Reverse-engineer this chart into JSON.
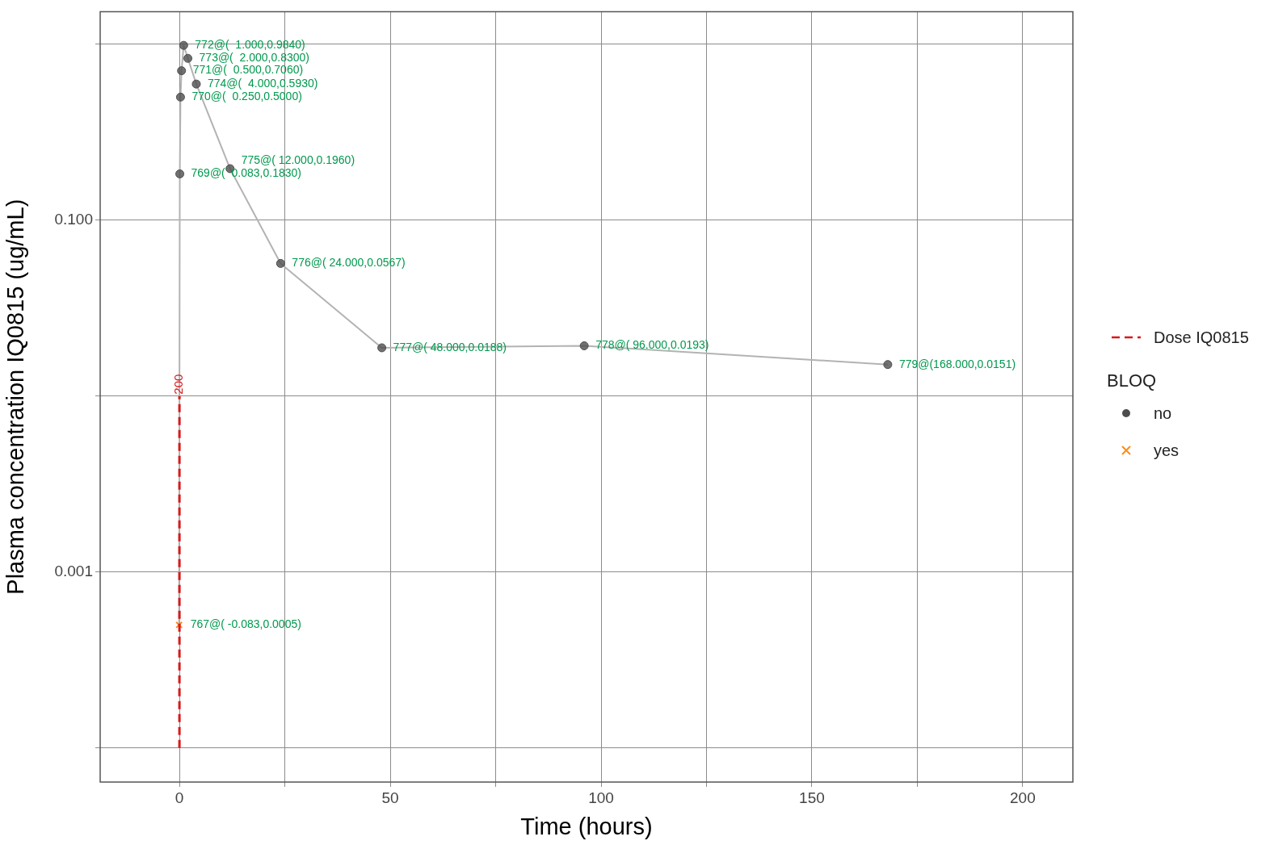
{
  "chart_data": {
    "type": "scatter",
    "xlabel": "Time (hours)",
    "ylabel": "Plasma concentration IQ0815 (ug/mL)",
    "legend_title": "BLOQ",
    "legend": "right",
    "grid": true,
    "log": "y",
    "xlim": [
      -18.8,
      211.9
    ],
    "ylim": [
      6.4e-05,
      1.53
    ],
    "xticks": [
      0,
      {
        "value": 25,
        "label": null
      },
      50,
      {
        "value": 75,
        "label": null
      },
      100,
      {
        "value": 125,
        "label": null
      },
      150,
      {
        "value": 175,
        "label": null
      },
      200
    ],
    "yticks": [
      {
        "value": 0.0001,
        "label": null
      },
      {
        "value": 0.001,
        "label": "0.001"
      },
      {
        "value": 0.01,
        "label": null
      },
      {
        "value": 0.1,
        "label": "0.100"
      },
      {
        "value": 1,
        "label": null
      }
    ],
    "series": [
      {
        "type": "line",
        "color": "#b3b3b3",
        "marker": "none",
        "x": [
          -0.083,
          0.083,
          0.25,
          0.5,
          1,
          2,
          4,
          12,
          24,
          48,
          96,
          168
        ],
        "values": [
          0.0005,
          0.183,
          0.5,
          0.706,
          0.984,
          0.83,
          0.593,
          0.196,
          0.0567,
          0.0188,
          0.0193,
          0.0151
        ]
      },
      {
        "name": "no",
        "type": "scatter",
        "color": "#4d4d4d",
        "marker": "circle",
        "x": [
          0.083,
          0.25,
          0.5,
          1,
          2,
          4,
          12,
          24,
          48,
          96,
          168
        ],
        "values": [
          0.183,
          0.5,
          0.706,
          0.984,
          0.83,
          0.593,
          0.196,
          0.0567,
          0.0188,
          0.0193,
          0.0151
        ]
      },
      {
        "name": "yes",
        "type": "scatter",
        "color": "#ff8c1a",
        "marker": "cross",
        "x": [
          -0.083
        ],
        "values": [
          0.0005
        ]
      },
      {
        "name": "Dose IQ0815",
        "type": "line",
        "color": "#d7191c",
        "marker": "none",
        "line_style": "dashed",
        "x": [
          0,
          0
        ],
        "values": [
          0.0001,
          0.01
        ]
      }
    ],
    "annotations": [
      {
        "text": "200",
        "x": 0,
        "y": 0.01
      },
      {
        "text": "767@( -0.083,0.0005)",
        "x": -0.083,
        "y": 0.0005
      },
      {
        "text": "769@(  0.083,0.1830)",
        "x": 0.083,
        "y": 0.183
      },
      {
        "text": "770@(  0.250,0.5000)",
        "x": 0.25,
        "y": 0.5
      },
      {
        "text": "771@(  0.500,0.7060)",
        "x": 0.5,
        "y": 0.706
      },
      {
        "text": "772@(  1.000,0.9840)",
        "x": 1,
        "y": 0.984
      },
      {
        "text": "773@(  2.000,0.8300)",
        "x": 2,
        "y": 0.83
      },
      {
        "text": "774@(  4.000,0.5930)",
        "x": 4,
        "y": 0.593
      },
      {
        "text": "775@( 12.000,0.1960)",
        "x": 12,
        "y": 0.196
      },
      {
        "text": "776@( 24.000,0.0567)",
        "x": 24,
        "y": 0.0567
      },
      {
        "text": "777@( 48.000,0.0188)",
        "x": 48,
        "y": 0.0188
      },
      {
        "text": "778@( 96.000,0.0193)",
        "x": 96,
        "y": 0.0193
      },
      {
        "text": "779@(168.000,0.0151)",
        "x": 168,
        "y": 0.0151
      }
    ]
  }
}
